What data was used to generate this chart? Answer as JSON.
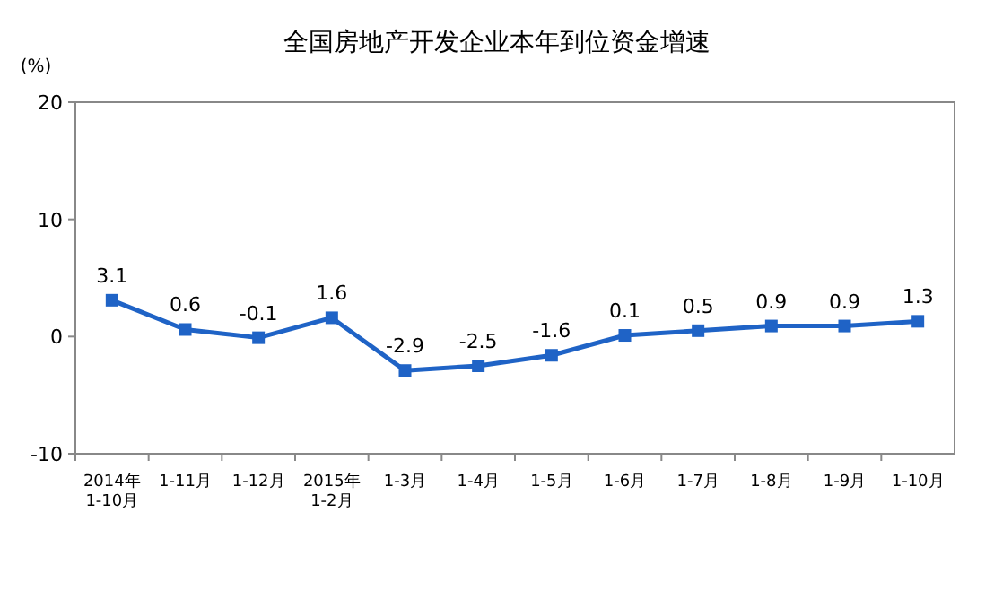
{
  "chart_data": {
    "type": "line",
    "title": "全国房地产开发企业本年到位资金增速",
    "ylabel": "(%)",
    "categories": [
      "2014年\n1-10月",
      "1-11月",
      "1-12月",
      "2015年\n1-2月",
      "1-3月",
      "1-4月",
      "1-5月",
      "1-6月",
      "1-7月",
      "1-8月",
      "1-9月",
      "1-10月"
    ],
    "series": [
      {
        "color": "#1f63c6",
        "values": [
          3.1,
          0.6,
          -0.1,
          1.6,
          -2.9,
          -2.5,
          -1.6,
          0.1,
          0.5,
          0.9,
          0.9,
          1.3
        ]
      }
    ],
    "ylim": [
      -10,
      20
    ],
    "yticks": [
      -10,
      0,
      10,
      20
    ],
    "marker": "square",
    "line_style": "solid",
    "data_labels": true,
    "grid": false
  }
}
